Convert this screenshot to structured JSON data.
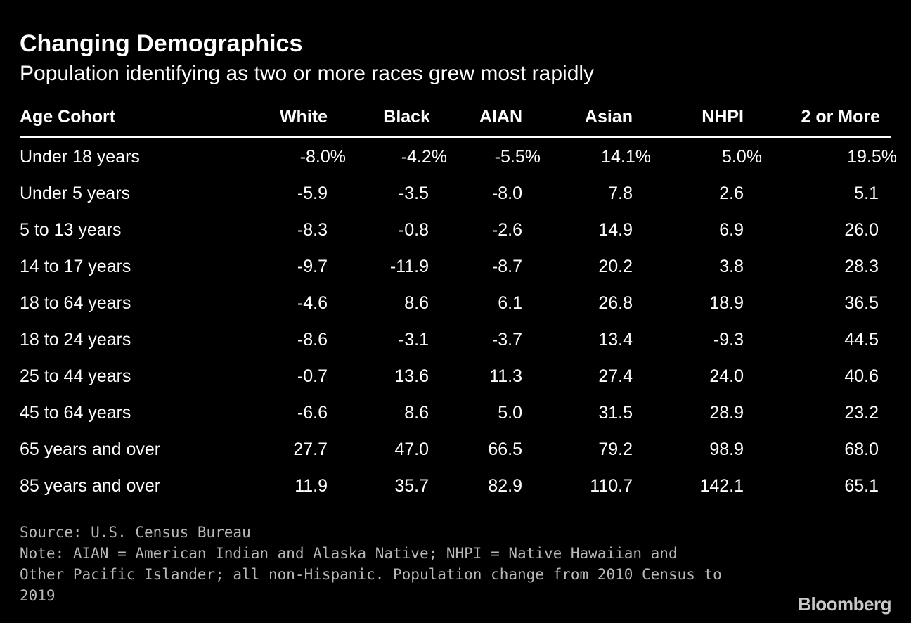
{
  "header": {
    "title": "Changing Demographics",
    "subtitle": "Population identifying as two or more races grew most rapidly"
  },
  "chart_data": {
    "type": "table",
    "title": "Changing Demographics",
    "subtitle": "Population identifying as two or more races grew most rapidly",
    "columns": [
      "Age Cohort",
      "White",
      "Black",
      "AIAN",
      "Asian",
      "NHPI",
      "2 or More"
    ],
    "rows": [
      [
        "Under 18 years",
        "-8.0%",
        "-4.2%",
        "-5.5%",
        "14.1%",
        "5.0%",
        "19.5%"
      ],
      [
        "Under 5 years",
        "-5.9",
        "-3.5",
        "-8.0",
        "7.8",
        "2.6",
        "5.1"
      ],
      [
        "5 to 13 years",
        "-8.3",
        "-0.8",
        "-2.6",
        "14.9",
        "6.9",
        "26.0"
      ],
      [
        "14 to 17 years",
        "-9.7",
        "-11.9",
        "-8.7",
        "20.2",
        "3.8",
        "28.3"
      ],
      [
        "18 to 64 years",
        "-4.6",
        "8.6",
        "6.1",
        "26.8",
        "18.9",
        "36.5"
      ],
      [
        "18 to 24 years",
        "-8.6",
        "-3.1",
        "-3.7",
        "13.4",
        "-9.3",
        "44.5"
      ],
      [
        "25 to 44 years",
        "-0.7",
        "13.6",
        "11.3",
        "27.4",
        "24.0",
        "40.6"
      ],
      [
        "45 to 64 years",
        "-6.6",
        "8.6",
        "5.0",
        "31.5",
        "28.9",
        "23.2"
      ],
      [
        "65 years and over",
        "27.7",
        "47.0",
        "66.5",
        "79.2",
        "98.9",
        "68.0"
      ],
      [
        "85 years and over",
        "11.9",
        "35.7",
        "82.9",
        "110.7",
        "142.1",
        "65.1"
      ]
    ]
  },
  "footer": {
    "source": "Source: U.S. Census Bureau",
    "note": "Note: AIAN = American Indian and Alaska Native; NHPI = Native Hawaiian and Other Pacific Islander; all non-Hispanic. Population change from 2010 Census to 2019",
    "brand": "Bloomberg"
  },
  "colors": {
    "background": "#000000",
    "text": "#ffffff",
    "footnote": "#b8b8b8"
  }
}
